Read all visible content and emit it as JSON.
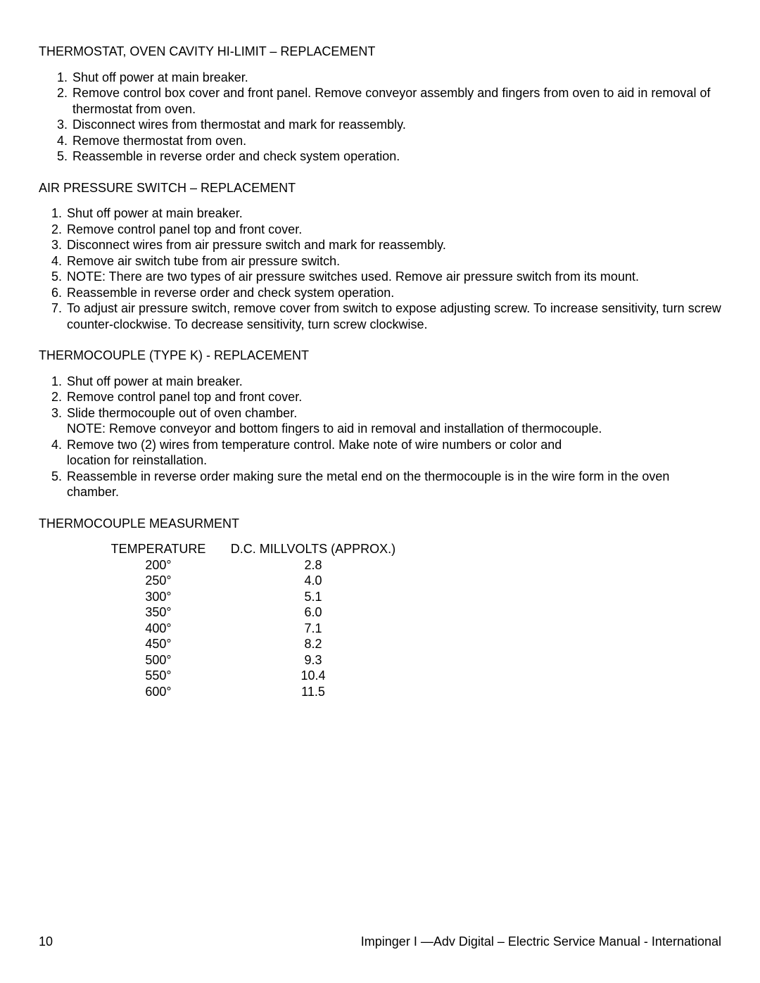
{
  "sections": [
    {
      "heading": "THERMOSTAT, OVEN CAVITY HI-LIMIT – REPLACEMENT",
      "steps": [
        "Shut off power at main breaker.",
        "Remove control box cover and front panel. Remove conveyor assembly and fingers from oven to aid in removal of thermostat from oven.",
        "Disconnect wires from thermostat and mark for reassembly.",
        "Remove thermostat from oven.",
        "Reassemble in reverse order and check system operation."
      ]
    },
    {
      "heading": "AIR PRESSURE SWITCH – REPLACEMENT",
      "steps": [
        "Shut off power at main breaker.",
        "Remove control panel top and front cover.",
        "Disconnect wires from air pressure switch and mark for reassembly.",
        "Remove air switch tube from air pressure switch.",
        "NOTE: There are two types of air pressure switches used. Remove air pressure switch from its mount.",
        "Reassemble in reverse order and check system operation.",
        "To adjust air pressure switch, remove cover from switch to expose adjusting screw. To increase sensitivity, turn screw counter-clockwise. To decrease sensitivity, turn screw clockwise."
      ]
    },
    {
      "heading": "THERMOCOUPLE (TYPE K)  - REPLACEMENT",
      "steps_complex": [
        {
          "main": "Shut off power at main breaker."
        },
        {
          "main": "Remove control panel top and front cover."
        },
        {
          "main": "Slide thermocouple out of oven chamber.",
          "note": "NOTE:  Remove conveyor and bottom fingers to aid in removal and installation of thermocouple."
        },
        {
          "main": "Remove two (2) wires from temperature control.  Make note of wire numbers or color and",
          "note": "location for reinstallation."
        },
        {
          "main": "Reassemble in reverse order making sure the metal end on the thermocouple is in the wire form in the oven chamber."
        }
      ]
    }
  ],
  "measurement": {
    "heading": "THERMOCOUPLE MEASURMENT",
    "col_a": "TEMPERATURE",
    "col_b": "D.C. MILLVOLTS (APPROX.)",
    "rows": [
      {
        "t": "200°",
        "mv": "2.8"
      },
      {
        "t": "250°",
        "mv": "4.0"
      },
      {
        "t": "300°",
        "mv": "5.1"
      },
      {
        "t": "350°",
        "mv": "6.0"
      },
      {
        "t": "400°",
        "mv": "7.1"
      },
      {
        "t": "450°",
        "mv": "8.2"
      },
      {
        "t": "500°",
        "mv": "9.3"
      },
      {
        "t": "550°",
        "mv": "10.4"
      },
      {
        "t": "600°",
        "mv": "11.5"
      }
    ]
  },
  "footer": {
    "page_number": "10",
    "doc_title": "Impinger I —Adv Digital – Electric Service Manual - International"
  }
}
